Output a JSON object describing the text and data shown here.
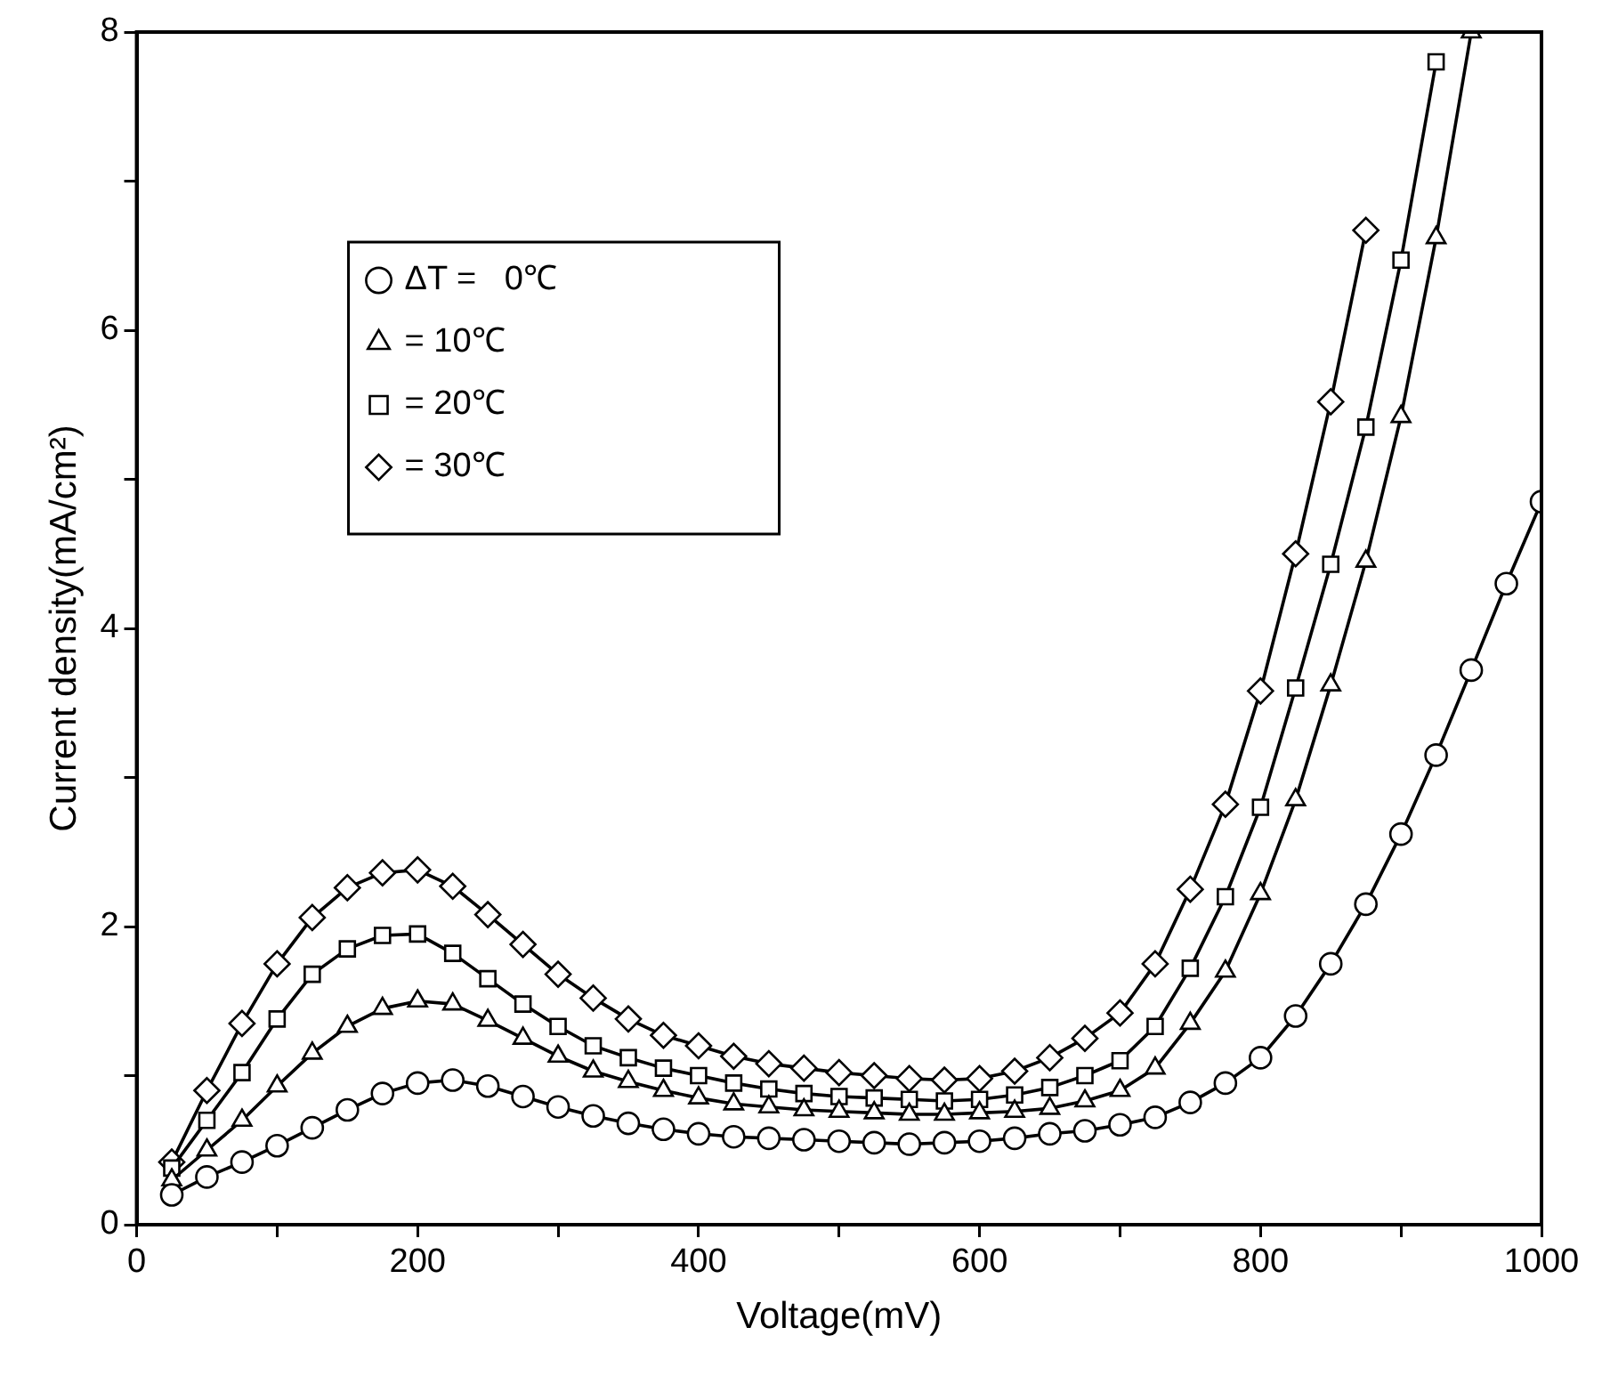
{
  "chart_data": {
    "type": "line",
    "xlabel": "Voltage(mV)",
    "ylabel": "Current density(mA/cm²)",
    "xlim": [
      0,
      1000
    ],
    "xticks": [
      0,
      {
        "value": 100,
        "label": null
      },
      200,
      {
        "value": 300,
        "label": null
      },
      400,
      {
        "value": 500,
        "label": null
      },
      600,
      {
        "value": 700,
        "label": null
      },
      800,
      {
        "value": 900,
        "label": null
      },
      1000
    ],
    "ylim": [
      0,
      8
    ],
    "yticks": [
      0,
      {
        "value": 1,
        "label": null
      },
      2,
      {
        "value": 3,
        "label": null
      },
      4,
      {
        "value": 5,
        "label": null
      },
      6,
      {
        "value": 7,
        "label": null
      },
      8
    ],
    "grid": false,
    "legend": "top left",
    "line_style": "solid",
    "x": [
      25,
      50,
      75,
      100,
      125,
      150,
      175,
      200,
      225,
      250,
      275,
      300,
      325,
      350,
      375,
      400,
      425,
      450,
      475,
      500,
      525,
      550,
      575,
      600,
      625,
      650,
      675,
      700,
      725,
      750,
      775,
      800,
      825,
      850,
      875,
      900,
      925,
      950,
      975,
      1000
    ],
    "series": [
      {
        "name": "ΔT =   0℃",
        "color": "#000000",
        "marker": "circle",
        "values": [
          0.2,
          0.32,
          0.42,
          0.53,
          0.65,
          0.77,
          0.88,
          0.95,
          0.97,
          0.93,
          0.86,
          0.79,
          0.73,
          0.68,
          0.64,
          0.61,
          0.59,
          0.58,
          0.57,
          0.56,
          0.55,
          0.54,
          0.55,
          0.56,
          0.58,
          0.61,
          0.63,
          0.67,
          0.72,
          0.82,
          0.95,
          1.12,
          1.4,
          1.75,
          2.15,
          2.62,
          3.15,
          3.72,
          4.3,
          4.85
        ]
      },
      {
        "name": "= 10℃",
        "color": "#000000",
        "marker": "triangle",
        "values": [
          0.3,
          0.5,
          0.7,
          0.93,
          1.15,
          1.33,
          1.45,
          1.5,
          1.48,
          1.37,
          1.25,
          1.13,
          1.03,
          0.96,
          0.9,
          0.85,
          0.81,
          0.79,
          0.77,
          0.76,
          0.75,
          0.74,
          0.74,
          0.75,
          0.76,
          0.78,
          0.83,
          0.9,
          1.05,
          1.35,
          1.7,
          2.22,
          2.85,
          3.62,
          4.45,
          5.42,
          6.62,
          8.0,
          null,
          null
        ]
      },
      {
        "name": "= 20℃",
        "color": "#000000",
        "marker": "square",
        "values": [
          0.38,
          0.7,
          1.02,
          1.38,
          1.68,
          1.85,
          1.94,
          1.95,
          1.82,
          1.65,
          1.48,
          1.33,
          1.2,
          1.12,
          1.05,
          1.0,
          0.95,
          0.91,
          0.88,
          0.86,
          0.85,
          0.84,
          0.83,
          0.84,
          0.87,
          0.92,
          1.0,
          1.1,
          1.33,
          1.72,
          2.2,
          2.8,
          3.6,
          4.43,
          5.35,
          6.47,
          7.8,
          null,
          null,
          null
        ]
      },
      {
        "name": "= 30℃",
        "color": "#000000",
        "marker": "diamond",
        "values": [
          0.42,
          0.9,
          1.35,
          1.75,
          2.06,
          2.26,
          2.36,
          2.38,
          2.27,
          2.08,
          1.88,
          1.68,
          1.52,
          1.38,
          1.27,
          1.2,
          1.13,
          1.08,
          1.05,
          1.02,
          1.0,
          0.98,
          0.97,
          0.98,
          1.03,
          1.12,
          1.25,
          1.42,
          1.75,
          2.25,
          2.82,
          3.58,
          4.5,
          5.52,
          6.67,
          null,
          null,
          null,
          null,
          null
        ]
      }
    ]
  }
}
